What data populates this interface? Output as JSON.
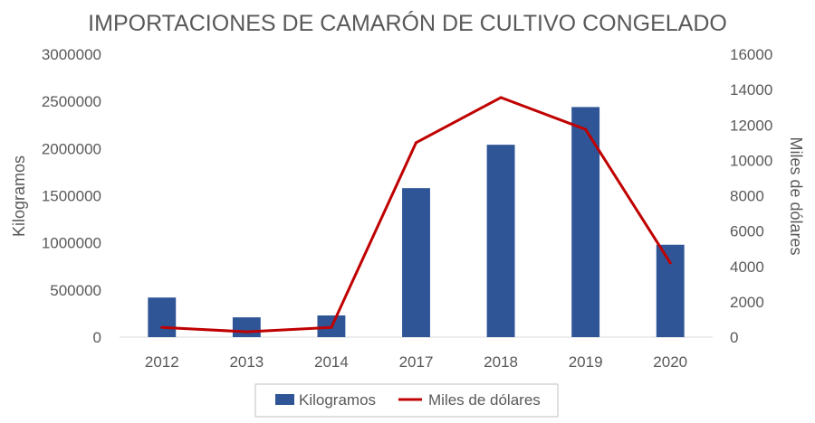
{
  "chart_data": {
    "type": "bar",
    "title": "IMPORTACIONES DE CAMARÓN DE CULTIVO CONGELADO",
    "categories": [
      "2012",
      "2013",
      "2014",
      "2017",
      "2018",
      "2019",
      "2020"
    ],
    "series": [
      {
        "name": "Kilogramos",
        "type": "bar",
        "axis": "left",
        "color": "#2F5597",
        "values": [
          420000,
          210000,
          230000,
          1580000,
          2040000,
          2440000,
          980000
        ]
      },
      {
        "name": "Miles de dólares",
        "type": "line",
        "axis": "right",
        "color": "#C00000",
        "values": [
          550,
          300,
          550,
          11000,
          13550,
          11750,
          4200
        ]
      }
    ],
    "y_left": {
      "label": "Kilogramos",
      "range": [
        0,
        3000000
      ],
      "ticks": [
        "0",
        "500000",
        "1000000",
        "1500000",
        "2000000",
        "2500000",
        "3000000"
      ]
    },
    "y_right": {
      "label": "Miles de dólares",
      "range": [
        0,
        16000
      ],
      "ticks": [
        "0",
        "2000",
        "4000",
        "6000",
        "8000",
        "10000",
        "12000",
        "14000",
        "16000"
      ]
    },
    "grid": false,
    "legend": "bottom"
  }
}
